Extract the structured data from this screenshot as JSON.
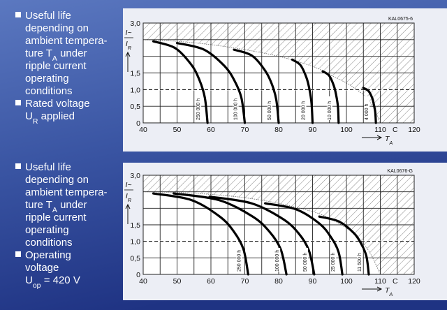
{
  "chart_data": [
    {
      "type": "line",
      "code": "KAL0675-6",
      "ylabel_num": "I~",
      "ylabel_den": [
        "I",
        {
          "sub": "R"
        }
      ],
      "xlabel": [
        "T",
        {
          "sub": "A"
        }
      ],
      "x_unit": "C",
      "xlim": [
        40,
        120
      ],
      "xticks": [
        40,
        50,
        60,
        70,
        80,
        90,
        100,
        110,
        120
      ],
      "minor_xticks": [
        45,
        55,
        65,
        75,
        85,
        95,
        105,
        115
      ],
      "ylim": [
        0,
        3
      ],
      "yticks": [
        {
          "value": 0,
          "label": "0"
        },
        {
          "value": 0.5,
          "label": "0,5"
        },
        {
          "value": 1,
          "label": "1,0"
        },
        {
          "value": 1.5,
          "label": "1,5"
        },
        {
          "value": 2,
          "label": null
        },
        {
          "value": 2.5,
          "label": null
        },
        {
          "value": 3,
          "label": "3,0"
        }
      ],
      "grid": true,
      "hline": 1,
      "limit": {
        "x": [
          40,
          50,
          60,
          70,
          80,
          90,
          95,
          100,
          103,
          106,
          108,
          110
        ],
        "values": [
          2.5,
          2.45,
          2.35,
          2.2,
          2.0,
          1.7,
          1.45,
          1.2,
          1.0,
          0.75,
          0.45,
          0
        ]
      },
      "series": [
        {
          "name": "250 000 h",
          "color": "#000000",
          "x": [
            43,
            49.4,
            54.2,
            56.6,
            58.2,
            59
          ],
          "values": [
            2.45,
            2.25,
            1.75,
            1.29,
            0.76,
            0
          ]
        },
        {
          "name": "100 000 h",
          "color": "#000000",
          "x": [
            50,
            58,
            64,
            67,
            69,
            70
          ],
          "values": [
            2.4,
            2.2,
            1.71,
            1.26,
            0.75,
            0
          ]
        },
        {
          "name": "50 000 h",
          "color": "#000000",
          "x": [
            66.8,
            72.1,
            76,
            78,
            79.3,
            80
          ],
          "values": [
            2.2,
            2.02,
            1.57,
            1.16,
            0.69,
            0
          ]
        },
        {
          "name": "20 000 h",
          "color": "#000000",
          "x": [
            84,
            86.4,
            88.2,
            89.1,
            89.7,
            90
          ],
          "values": [
            1.9,
            1.74,
            1.36,
            1.0,
            0.59,
            0
          ]
        },
        {
          "name": "10 000 h",
          "color": "#000000",
          "x": [
            93,
            94.9,
            96.3,
            97,
            97.5,
            97.7
          ],
          "values": [
            1.55,
            1.42,
            1.11,
            0.82,
            0.48,
            0
          ]
        },
        {
          "name": "4 000 h",
          "color": "#000000",
          "x": [
            105,
            106.5,
            107.6,
            108.1,
            108.5,
            108.7
          ],
          "values": [
            1.05,
            0.96,
            0.75,
            0.55,
            0.33,
            0
          ]
        }
      ]
    },
    {
      "type": "line",
      "code": "KAL0676-G",
      "ylabel_num": "I~",
      "ylabel_den": [
        "I",
        {
          "sub": "R"
        }
      ],
      "xlabel": [
        "T",
        {
          "sub": "A"
        }
      ],
      "x_unit": "C",
      "xlim": [
        40,
        120
      ],
      "xticks": [
        40,
        50,
        60,
        70,
        80,
        90,
        100,
        110,
        120
      ],
      "minor_xticks": [
        45,
        55,
        65,
        75,
        85,
        95,
        105,
        115
      ],
      "ylim": [
        0,
        3
      ],
      "yticks": [
        {
          "value": 0,
          "label": "0"
        },
        {
          "value": 0.5,
          "label": "0,5"
        },
        {
          "value": 1,
          "label": "1,0"
        },
        {
          "value": 1.5,
          "label": "1,5"
        },
        {
          "value": 2,
          "label": null
        },
        {
          "value": 2.5,
          "label": null
        },
        {
          "value": 3,
          "label": "3,0"
        }
      ],
      "grid": true,
      "hline": 1,
      "limit": {
        "x": [
          40,
          50,
          60,
          70,
          80,
          90,
          95,
          100,
          103,
          106,
          108,
          110
        ],
        "values": [
          2.5,
          2.48,
          2.42,
          2.32,
          2.15,
          1.9,
          1.7,
          1.4,
          1.15,
          0.8,
          0.45,
          0
        ]
      },
      "series": [
        {
          "name": "250 000 h",
          "color": "#000000",
          "x": [
            43,
            54.2,
            62.6,
            66.8,
            69.6,
            71
          ],
          "values": [
            2.45,
            2.25,
            1.75,
            1.29,
            0.76,
            0
          ]
        },
        {
          "name": "100 000 h",
          "color": "#000000",
          "x": [
            49,
            62.3,
            72.3,
            77.3,
            80.6,
            82.3
          ],
          "values": [
            2.45,
            2.25,
            1.75,
            1.29,
            0.76,
            0
          ]
        },
        {
          "name": "50 000 h",
          "color": "#000000",
          "x": [
            59.6,
            72,
            81.2,
            85.9,
            88.9,
            90.5
          ],
          "values": [
            2.35,
            2.15,
            1.68,
            1.24,
            0.73,
            0
          ]
        },
        {
          "name": "25 000 h",
          "color": "#000000",
          "x": [
            76,
            85.1,
            92,
            95.4,
            97.7,
            98.8
          ],
          "values": [
            2.15,
            1.97,
            1.54,
            1.13,
            0.67,
            0
          ]
        },
        {
          "name": "11 500 h",
          "color": "#000000",
          "x": [
            92,
            97.8,
            102.2,
            104.4,
            105.9,
            106.6
          ],
          "values": [
            1.75,
            1.6,
            1.25,
            0.92,
            0.55,
            0
          ]
        }
      ]
    }
  ],
  "notes": [
    [
      [
        [
          "Useful life"
        ],
        [
          "depending on"
        ],
        [
          "ambient tempera-"
        ],
        [
          "ture T",
          {
            "sub": "A"
          },
          " under"
        ],
        [
          "ripple current"
        ],
        [
          "operating"
        ],
        [
          "conditions"
        ]
      ],
      [
        [
          "Rated voltage"
        ],
        [
          "U",
          {
            "sub": "R"
          },
          " applied"
        ]
      ]
    ],
    [
      [
        [
          "Useful life"
        ],
        [
          "depending on"
        ],
        [
          "ambient tempera-"
        ],
        [
          "ture T",
          {
            "sub": "A"
          },
          " under"
        ],
        [
          "ripple current"
        ],
        [
          "operating"
        ],
        [
          "conditions"
        ]
      ],
      [
        [
          "Operating"
        ],
        [
          "voltage"
        ],
        [
          "U",
          {
            "sub": "op"
          },
          " = 420 V"
        ]
      ]
    ]
  ]
}
